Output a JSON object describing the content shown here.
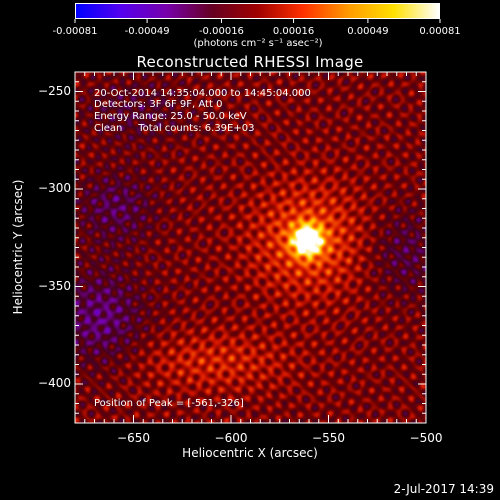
{
  "colorbar": {
    "tick_labels": [
      "-0.00081",
      "-0.00049",
      "-0.00016",
      "0.00016",
      "0.00049",
      "0.00081"
    ],
    "tick_values": [
      -0.00081,
      -0.00049,
      -0.00016,
      0.00016,
      0.00049,
      0.00081
    ],
    "range": [
      -0.00081,
      0.00081
    ],
    "unit_label": "(photons cm⁻² s⁻¹ asec⁻²)",
    "colors": [
      "#0000ff",
      "#5500ee",
      "#7700aa",
      "#660022",
      "#a00000",
      "#ff3000",
      "#ff9a00",
      "#ffe000",
      "#ffffff"
    ]
  },
  "chart_data": {
    "type": "heatmap",
    "title": "Reconstructed RHESSI Image",
    "xlabel": "Heliocentric X (arcsec)",
    "ylabel": "Heliocentric Y (arcsec)",
    "xlim": [
      -680,
      -500
    ],
    "ylim": [
      -420,
      -240
    ],
    "x_ticks": [
      -650,
      -600,
      -550,
      -500
    ],
    "x_tick_labels": [
      "−650",
      "−600",
      "−550",
      "−500"
    ],
    "y_ticks": [
      -250,
      -300,
      -350,
      -400
    ],
    "y_tick_labels": [
      "−250",
      "−300",
      "−350",
      "−400"
    ],
    "peak": {
      "x": -561,
      "y": -326
    },
    "annotations": [
      "20-Oct-2014 14:35:04.000 to 14:45:04.000",
      "Detectors: 3F 6F 9F, Att 0",
      "Energy Range: 25.0 - 50.0 keV",
      "Clean     Total counts: 6.39E+03"
    ],
    "peak_label": "Position of Peak = [-561,-326]"
  },
  "timestamp": "2-Jul-2017 14:39"
}
